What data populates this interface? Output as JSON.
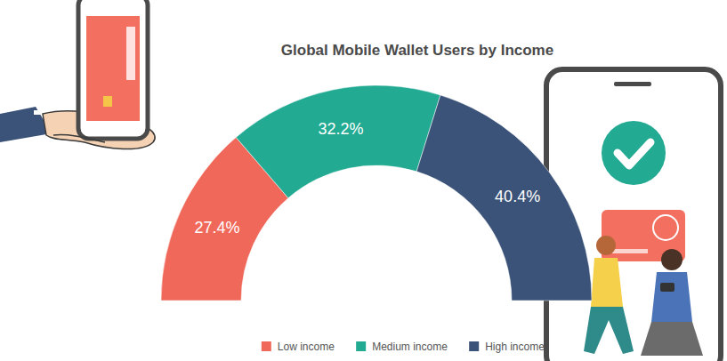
{
  "chart_data": {
    "type": "pie",
    "title": "Global Mobile Wallet Users by Income",
    "categories": [
      "Low income",
      "Medium income",
      "High income"
    ],
    "values": [
      27.4,
      32.2,
      40.4
    ],
    "value_labels": [
      "27.4%",
      "32.2%",
      "40.4%"
    ],
    "colors": [
      "#f0685a",
      "#22aa92",
      "#3b5378"
    ],
    "data_labels": true,
    "legend": "bottom"
  }
}
